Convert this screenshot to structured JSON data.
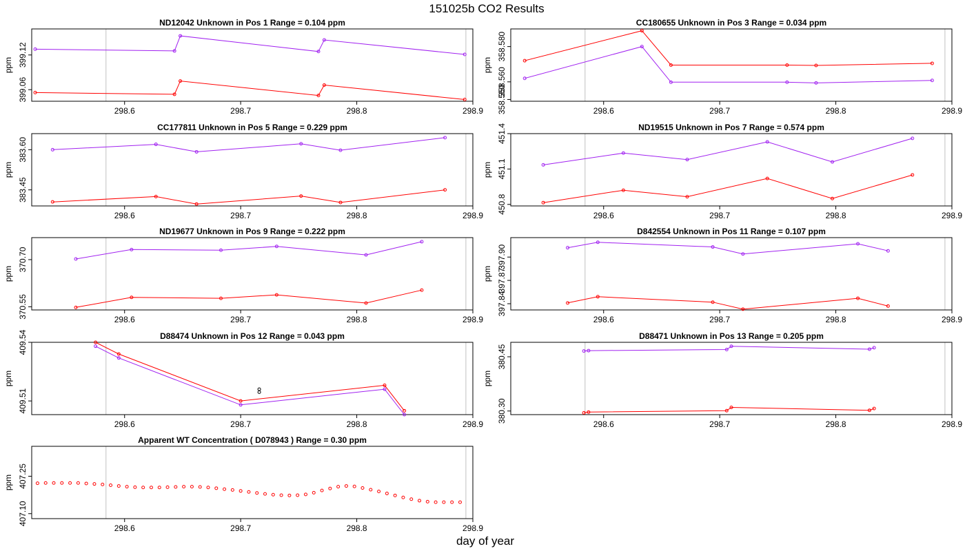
{
  "figure": {
    "title": "151025b  CO2 Results",
    "xlabel": "day of year"
  },
  "colors": {
    "series_a": "#a020f0",
    "series_b": "#ff0000",
    "refline": "#c0c0c0",
    "axis": "#000000"
  },
  "chart_data": [
    {
      "type": "line",
      "id": "p1",
      "title": "ND12042    Unknown in Pos 1          Range =  0.104 ppm",
      "ylabel": "ppm",
      "xlim": [
        298.52,
        298.9
      ],
      "ylim": [
        399.04,
        399.165
      ],
      "xticks": [
        298.6,
        298.7,
        298.8,
        298.9
      ],
      "xtick_labels": [
        "298.6",
        "298.7",
        "298.8",
        "298.9"
      ],
      "yticks": [
        399.06,
        399.12
      ],
      "ytick_labels": [
        "399.06",
        "399.12"
      ],
      "vlines": [
        298.584,
        298.894
      ],
      "series": [
        {
          "name": "purple",
          "color": "#a020f0",
          "x": [
            298.523,
            298.643,
            298.648,
            298.767,
            298.772,
            298.893
          ],
          "y": [
            399.13,
            399.127,
            399.153,
            399.126,
            399.146,
            399.121
          ]
        },
        {
          "name": "red",
          "color": "#ff0000",
          "x": [
            298.523,
            298.643,
            298.648,
            298.767,
            298.772,
            298.893
          ],
          "y": [
            399.055,
            399.052,
            399.075,
            399.05,
            399.068,
            399.043
          ]
        }
      ]
    },
    {
      "type": "line",
      "id": "p2",
      "title": "CC180655    Unknown in Pos 3          Range =  0.034 ppm",
      "ylabel": "ppm",
      "xlim": [
        298.52,
        298.9
      ],
      "ylim": [
        358.549,
        358.59
      ],
      "xticks": [
        298.6,
        298.7,
        298.8,
        298.9
      ],
      "xtick_labels": [
        "298.6",
        "298.7",
        "298.8",
        "298.9"
      ],
      "yticks": [
        358.55,
        358.56,
        358.58
      ],
      "ytick_labels": [
        "358.550",
        "358.560",
        "358.580"
      ],
      "vlines": [
        298.584,
        298.894
      ],
      "series": [
        {
          "name": "red",
          "color": "#ff0000",
          "x": [
            298.532,
            298.633,
            298.658,
            298.758,
            298.783,
            298.883
          ],
          "y": [
            358.572,
            358.589,
            358.5695,
            358.5695,
            358.5693,
            358.5705
          ]
        },
        {
          "name": "purple",
          "color": "#a020f0",
          "x": [
            298.532,
            298.633,
            298.658,
            298.758,
            298.783,
            298.883
          ],
          "y": [
            358.562,
            358.58,
            358.5598,
            358.5598,
            358.5594,
            358.5608
          ]
        }
      ]
    },
    {
      "type": "line",
      "id": "p3",
      "title": "CC177811    Unknown in Pos 5          Range =  0.229 ppm",
      "ylabel": "ppm",
      "xlim": [
        298.52,
        298.9
      ],
      "ylim": [
        383.39,
        383.66
      ],
      "xticks": [
        298.6,
        298.7,
        298.8,
        298.9
      ],
      "xtick_labels": [
        "298.6",
        "298.7",
        "298.8",
        "298.9"
      ],
      "yticks": [
        383.45,
        383.6
      ],
      "ytick_labels": [
        "383.45",
        "383.60"
      ],
      "vlines": [
        298.584,
        298.894
      ],
      "series": [
        {
          "name": "purple",
          "color": "#a020f0",
          "x": [
            298.538,
            298.627,
            298.662,
            298.752,
            298.786,
            298.876
          ],
          "y": [
            383.6,
            383.62,
            383.592,
            383.622,
            383.598,
            383.645
          ]
        },
        {
          "name": "red",
          "color": "#ff0000",
          "x": [
            298.538,
            298.627,
            298.662,
            298.752,
            298.786,
            298.876
          ],
          "y": [
            383.405,
            383.425,
            383.397,
            383.427,
            383.403,
            383.45
          ]
        }
      ]
    },
    {
      "type": "line",
      "id": "p4",
      "title": "ND19515    Unknown in Pos 7          Range =  0.574 ppm",
      "ylabel": "ppm",
      "xlim": [
        298.52,
        298.9
      ],
      "ylim": [
        450.787,
        451.4
      ],
      "xticks": [
        298.6,
        298.7,
        298.8,
        298.9
      ],
      "xtick_labels": [
        "298.6",
        "298.7",
        "298.8",
        "298.9"
      ],
      "yticks": [
        450.8,
        451.1,
        451.4
      ],
      "ytick_labels": [
        "450.8",
        "451.1",
        "451.4"
      ],
      "vlines": [
        298.584,
        298.894
      ],
      "series": [
        {
          "name": "purple",
          "color": "#a020f0",
          "x": [
            298.548,
            298.617,
            298.672,
            298.741,
            298.797,
            298.866
          ],
          "y": [
            451.135,
            451.235,
            451.18,
            451.33,
            451.16,
            451.36
          ]
        },
        {
          "name": "red",
          "color": "#ff0000",
          "x": [
            298.548,
            298.617,
            298.672,
            298.741,
            298.797,
            298.866
          ],
          "y": [
            450.815,
            450.92,
            450.865,
            451.02,
            450.85,
            451.05
          ]
        }
      ]
    },
    {
      "type": "line",
      "id": "p5",
      "title": "ND19677    Unknown in Pos 9          Range =  0.222 ppm",
      "ylabel": "ppm",
      "xlim": [
        298.52,
        298.9
      ],
      "ylim": [
        370.54,
        370.77
      ],
      "xticks": [
        298.6,
        298.7,
        298.8,
        298.9
      ],
      "xtick_labels": [
        "298.6",
        "298.7",
        "298.8",
        "298.9"
      ],
      "yticks": [
        370.55,
        370.7
      ],
      "ytick_labels": [
        "370.55",
        "370.70"
      ],
      "vlines": [
        298.584,
        298.894
      ],
      "series": [
        {
          "name": "purple",
          "color": "#a020f0",
          "x": [
            298.558,
            298.606,
            298.683,
            298.731,
            298.808,
            298.856
          ],
          "y": [
            370.702,
            370.732,
            370.73,
            370.742,
            370.715,
            370.757
          ]
        },
        {
          "name": "red",
          "color": "#ff0000",
          "x": [
            298.558,
            298.606,
            298.683,
            298.731,
            298.808,
            298.856
          ],
          "y": [
            370.548,
            370.58,
            370.577,
            370.588,
            370.562,
            370.603
          ]
        }
      ]
    },
    {
      "type": "line",
      "id": "p6",
      "title": "D842554    Unknown in Pos 11          Range =  0.107 ppm",
      "ylabel": "ppm",
      "xlim": [
        298.52,
        298.9
      ],
      "ylim": [
        397.832,
        397.925
      ],
      "xticks": [
        298.6,
        298.7,
        298.8,
        298.9
      ],
      "xtick_labels": [
        "298.6",
        "298.7",
        "298.8",
        "298.9"
      ],
      "yticks": [
        397.84,
        397.87,
        397.9
      ],
      "ytick_labels": [
        "397.84",
        "397.87",
        "397.90"
      ],
      "vlines": [
        298.584,
        298.894
      ],
      "series": [
        {
          "name": "purple",
          "color": "#a020f0",
          "x": [
            298.569,
            298.595,
            298.694,
            298.72,
            298.819,
            298.845
          ],
          "y": [
            397.912,
            397.919,
            397.913,
            397.904,
            397.917,
            397.908
          ]
        },
        {
          "name": "red",
          "color": "#ff0000",
          "x": [
            298.569,
            298.595,
            298.694,
            298.72,
            298.819,
            298.845
          ],
          "y": [
            397.841,
            397.849,
            397.842,
            397.833,
            397.847,
            397.837
          ]
        }
      ]
    },
    {
      "type": "line",
      "id": "p7",
      "title": "D88474    Unknown in Pos 12          Range =  0.043 ppm",
      "ylabel": "ppm",
      "xlim": [
        298.52,
        298.9
      ],
      "ylim": [
        409.503,
        409.54
      ],
      "xticks": [
        298.6,
        298.7,
        298.8,
        298.9
      ],
      "xtick_labels": [
        "298.6",
        "298.7",
        "298.8",
        "298.9"
      ],
      "yticks": [
        409.51,
        409.54
      ],
      "ytick_labels": [
        "409.51",
        "409.54"
      ],
      "vlines": [
        298.584,
        298.894
      ],
      "series": [
        {
          "name": "red",
          "color": "#ff0000",
          "x": [
            298.575,
            298.595,
            298.7,
            298.824,
            298.841
          ],
          "y": [
            409.54,
            409.534,
            409.51,
            409.518,
            409.505
          ]
        },
        {
          "name": "purple",
          "color": "#a020f0",
          "x": [
            298.575,
            298.595,
            298.7,
            298.824,
            298.841
          ],
          "y": [
            409.538,
            409.532,
            409.508,
            409.516,
            409.503
          ]
        }
      ],
      "extra_points": [
        {
          "x": 298.716,
          "y": 409.516,
          "color": "#000000"
        },
        {
          "x": 298.716,
          "y": 409.5145,
          "color": "#000000"
        }
      ]
    },
    {
      "type": "line",
      "id": "p8",
      "title": "D88471    Unknown in Pos 13          Range =  0.205 ppm",
      "ylabel": "ppm",
      "xlim": [
        298.52,
        298.9
      ],
      "ylim": [
        380.29,
        380.49
      ],
      "xticks": [
        298.6,
        298.7,
        298.8,
        298.9
      ],
      "xtick_labels": [
        "298.6",
        "298.7",
        "298.8",
        "298.9"
      ],
      "yticks": [
        380.3,
        380.45
      ],
      "ytick_labels": [
        "380.30",
        "380.45"
      ],
      "vlines": [
        298.584,
        298.894
      ],
      "series": [
        {
          "name": "purple",
          "color": "#a020f0",
          "x": [
            298.583,
            298.587,
            298.706,
            298.71,
            298.829,
            298.833
          ],
          "y": [
            380.466,
            380.467,
            380.47,
            380.479,
            380.471,
            380.475
          ]
        },
        {
          "name": "red",
          "color": "#ff0000",
          "x": [
            298.583,
            298.587,
            298.706,
            298.71,
            298.829,
            298.833
          ],
          "y": [
            380.295,
            380.297,
            380.301,
            380.31,
            380.302,
            380.307
          ]
        }
      ]
    },
    {
      "type": "scatter",
      "id": "p9",
      "title": "Apparent WT Concentration ( D078943 )          Range = 0.30 ppm",
      "ylabel": "ppm",
      "xlim": [
        298.52,
        298.9
      ],
      "ylim": [
        407.08,
        407.37
      ],
      "xticks": [
        298.6,
        298.7,
        298.8,
        298.9
      ],
      "xtick_labels": [
        "298.6",
        "298.7",
        "298.8",
        "298.9"
      ],
      "yticks": [
        407.1,
        407.25
      ],
      "ytick_labels": [
        "407.10",
        "407.25"
      ],
      "vlines": [
        298.584,
        298.894
      ],
      "series": [
        {
          "name": "red",
          "color": "#ff0000",
          "x": [
            298.525,
            298.532,
            298.539,
            298.546,
            298.553,
            298.56,
            298.567,
            298.574,
            298.581,
            298.588,
            298.595,
            298.602,
            298.609,
            298.616,
            298.623,
            298.63,
            298.637,
            298.644,
            298.651,
            298.658,
            298.665,
            298.672,
            298.679,
            298.686,
            298.693,
            298.7,
            298.707,
            298.714,
            298.721,
            298.728,
            298.735,
            298.742,
            298.749,
            298.756,
            298.763,
            298.77,
            298.777,
            298.784,
            298.791,
            298.798,
            298.805,
            298.812,
            298.819,
            298.826,
            298.833,
            298.84,
            298.847,
            298.854,
            298.861,
            298.868,
            298.875,
            298.882,
            298.889
          ],
          "y": [
            407.222,
            407.223,
            407.223,
            407.223,
            407.223,
            407.223,
            407.221,
            407.219,
            407.217,
            407.214,
            407.211,
            407.208,
            407.206,
            407.205,
            407.205,
            407.205,
            407.206,
            407.207,
            407.208,
            407.208,
            407.207,
            407.205,
            407.202,
            407.198,
            407.195,
            407.191,
            407.187,
            407.183,
            407.179,
            407.176,
            407.174,
            407.173,
            407.174,
            407.177,
            407.184,
            407.193,
            407.201,
            407.208,
            407.211,
            407.209,
            407.203,
            407.196,
            407.189,
            407.181,
            407.173,
            407.165,
            407.158,
            407.152,
            407.148,
            407.146,
            407.146,
            407.146,
            407.146
          ]
        }
      ]
    }
  ]
}
